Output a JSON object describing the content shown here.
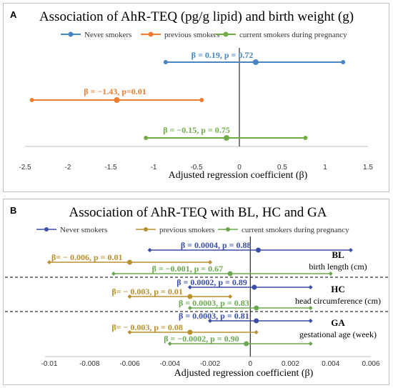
{
  "colors": {
    "never": "#4a86c5",
    "previous": "#ed7d31",
    "current": "#70ad47",
    "never_b": "#3b4fa6",
    "previous_b": "#b8902e",
    "current_b": "#6aa84f"
  },
  "chart_data": [
    {
      "panel_label": "A",
      "type": "scatter",
      "title": "Association of AhR-TEQ (pg/g lipid) and birth weight (g)",
      "xlabel": "Adjusted regression coefficient (β)",
      "xlim": [
        -2.5,
        1.5
      ],
      "xticks": [
        "-2.5",
        "-2",
        "-1.5",
        "-1",
        "-0.5",
        "0",
        "0.5",
        "1",
        "1.5"
      ],
      "xtick_values": [
        -2.5,
        -2,
        -1.5,
        -1,
        -0.5,
        0,
        0.5,
        1,
        1.5
      ],
      "legend_position": "top",
      "legend": [
        "Never smokers",
        "previous smokers",
        "current smokers during pregnancy"
      ],
      "series": [
        {
          "name": "Never smokers",
          "estimate": 0.19,
          "ci": [
            -0.86,
            1.21
          ],
          "annotation": "β = 0.19, p = 0.72"
        },
        {
          "name": "previous smokers",
          "estimate": -1.43,
          "ci": [
            -2.42,
            -0.44
          ],
          "annotation": "β = −1.43, p=0.01"
        },
        {
          "name": "current smokers during pregnancy",
          "estimate": -0.15,
          "ci": [
            -1.09,
            0.77
          ],
          "annotation": "β = −0.15, p = 0.75"
        }
      ]
    },
    {
      "panel_label": "B",
      "type": "scatter",
      "title": "Association of AhR-TEQ with BL, HC and  GA",
      "xlabel": "Adjusted regression coefficient (β)",
      "xlim": [
        -0.01,
        0.006
      ],
      "xticks": [
        "-0.01",
        "-0.008",
        "-0.006",
        "-0.004",
        "-0.002",
        "0",
        "0.002",
        "0.004",
        "0.006"
      ],
      "xtick_values": [
        -0.01,
        -0.008,
        -0.006,
        -0.004,
        -0.002,
        0,
        0.002,
        0.004,
        0.006
      ],
      "legend_position": "top",
      "legend": [
        "Never smokers",
        "previous smokers",
        "current smokers during pregnancy"
      ],
      "groups": [
        {
          "abbr": "BL",
          "name": "birth length (cm)",
          "rows": [
            {
              "series": "Never smokers",
              "estimate": 0.0004,
              "ci": [
                -0.005,
                0.005
              ],
              "annotation": "β = 0.0004, p = 0.88"
            },
            {
              "series": "previous smokers",
              "estimate": -0.006,
              "ci": [
                -0.01,
                -0.002
              ],
              "annotation": "β= − 0.006, p = 0.01"
            },
            {
              "series": "current smokers during pregnancy",
              "estimate": -0.001,
              "ci": [
                -0.0068,
                0.004
              ],
              "annotation": "β = −0.001, p = 0.67"
            }
          ]
        },
        {
          "abbr": "HC",
          "name": "head circumference (cm)",
          "rows": [
            {
              "series": "Never smokers",
              "estimate": 0.0002,
              "ci": [
                -0.003,
                0.003
              ],
              "annotation": "β = 0.0002, p = 0.89"
            },
            {
              "series": "previous smokers",
              "estimate": -0.003,
              "ci": [
                -0.006,
                -0.001
              ],
              "annotation": "β= − 0.003, p = 0.01"
            },
            {
              "series": "current smokers during pregnancy",
              "estimate": 0.0003,
              "ci": [
                -0.003,
                0.003
              ],
              "annotation": "β = 0.0003, p = 0.83"
            }
          ]
        },
        {
          "abbr": "GA",
          "name": "gestational age (week)",
          "rows": [
            {
              "series": "Never smokers",
              "estimate": 0.0003,
              "ci": [
                -0.002,
                0.003
              ],
              "annotation": "β = 0.0003, p = 0.81"
            },
            {
              "series": "previous smokers",
              "estimate": -0.003,
              "ci": [
                -0.006,
                0.0003
              ],
              "annotation": "β= − 0.003, p = 0.08"
            },
            {
              "series": "current smokers during pregnancy",
              "estimate": -0.0002,
              "ci": [
                -0.004,
                0.003
              ],
              "annotation": "β = −0.0002, p = 0.90"
            }
          ]
        }
      ]
    }
  ]
}
